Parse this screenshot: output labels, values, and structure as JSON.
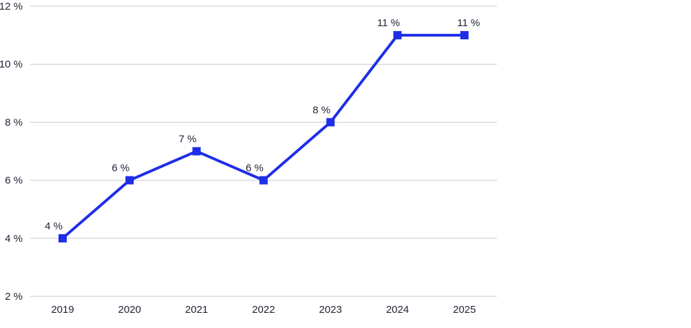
{
  "chart_data": {
    "type": "line",
    "categories": [
      "2019",
      "2020",
      "2021",
      "2022",
      "2023",
      "2024",
      "2025"
    ],
    "series": [
      {
        "values": [
          4,
          6,
          7,
          6,
          8,
          11,
          11
        ],
        "color": "#1f2ee8",
        "marker": "square"
      }
    ],
    "data_labels": [
      "4 %",
      "6 %",
      "7 %",
      "6 %",
      "8 %",
      "11 %",
      "11 %"
    ],
    "y_ticks": [
      2,
      4,
      6,
      8,
      10,
      12
    ],
    "y_tick_labels": [
      "2 %",
      "4 %",
      "6 %",
      "8 %",
      "10 %",
      "12 %"
    ],
    "ylim": [
      2,
      12
    ],
    "grid": "horizontal",
    "title": "",
    "xlabel": "",
    "ylabel": "",
    "colors": {
      "grid": "#c9c9cf",
      "text": "#1e2233"
    }
  }
}
